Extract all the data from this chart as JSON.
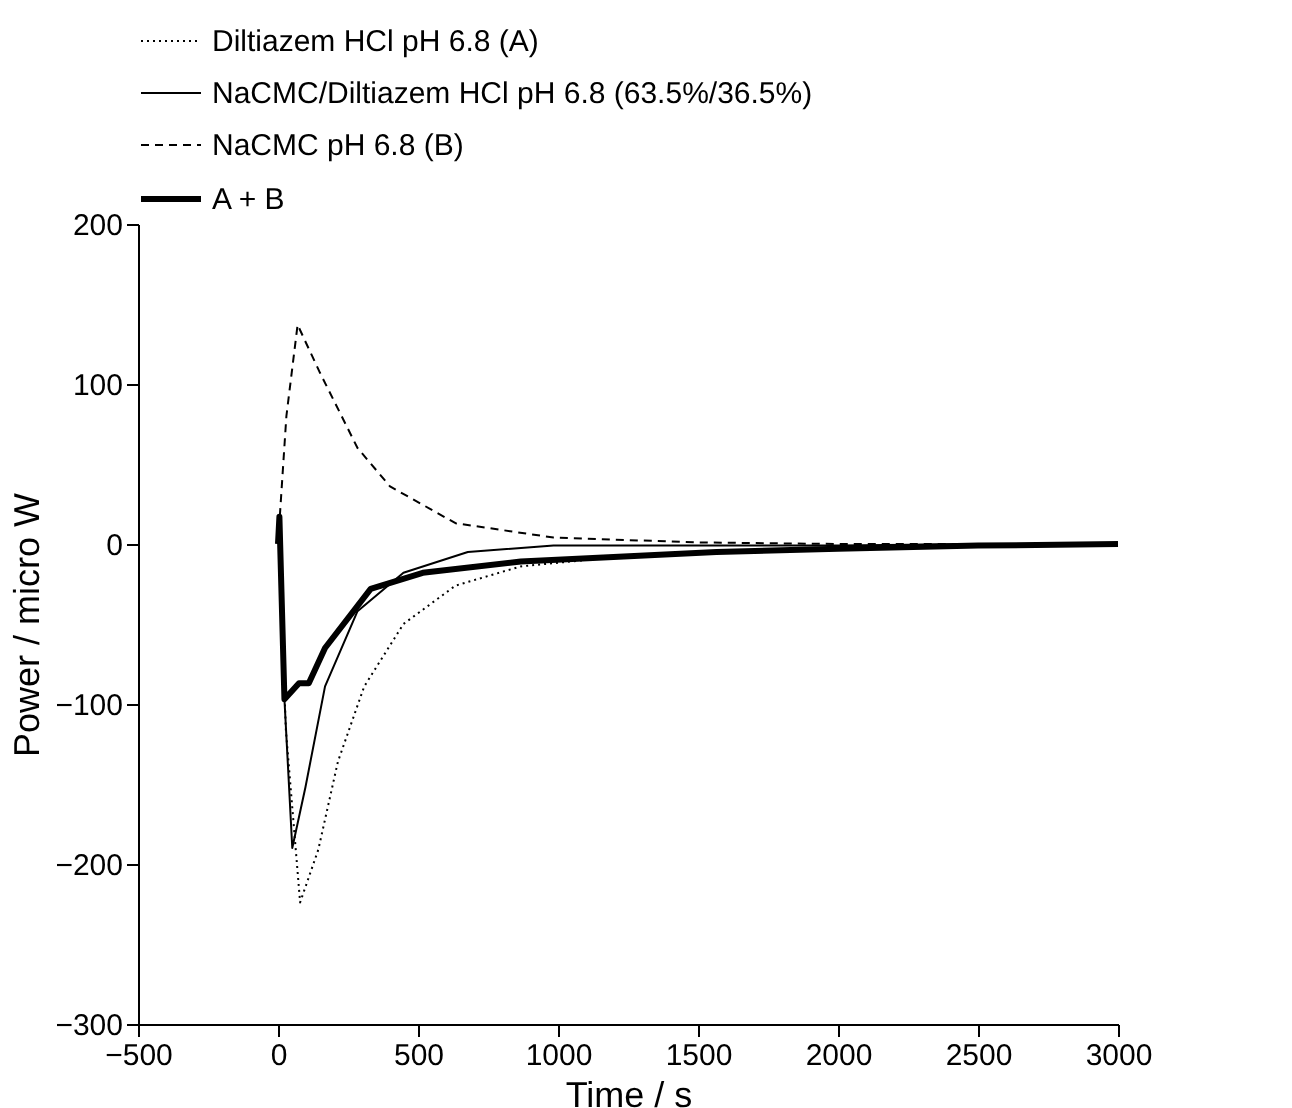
{
  "chart_data": {
    "type": "line",
    "xlabel": "Time / s",
    "ylabel": "Power / micro W",
    "xlim": [
      -500,
      3000
    ],
    "xticks": [
      -500,
      0,
      500,
      1000,
      1500,
      2000,
      2500,
      3000
    ],
    "ylim": [
      -300,
      200
    ],
    "yticks": [
      -300,
      -200,
      -100,
      0,
      100,
      200
    ],
    "grid": false,
    "legend": "top",
    "marker": "none",
    "series": [
      {
        "name": "Diltiazem HCl pH 6.8 (A)",
        "color": "#000000",
        "line_style": "dotted",
        "x": [
          0,
          5,
          28,
          79,
          144,
          214,
          308,
          448,
          634,
          867,
          1217,
          1566,
          2000,
          2500,
          3000
        ],
        "values": [
          0,
          0,
          -116,
          -224,
          -191,
          -136,
          -89,
          -50,
          -26,
          -14,
          -8,
          -5,
          -3,
          -1,
          0
        ]
      },
      {
        "name": "NaCMC/Diltiazem HCl pH 6.8 (63.5%/36.5%)",
        "color": "#000000",
        "line_style": "solid",
        "x": [
          0,
          5,
          23,
          51,
          98,
          168,
          284,
          448,
          678,
          984,
          1500,
          2000,
          2500,
          3000
        ],
        "values": [
          0,
          0,
          -97,
          -190,
          -152,
          -89,
          -42,
          -18,
          -5,
          -1,
          -1,
          -1,
          0,
          0
        ]
      },
      {
        "name": "NaCMC pH 6.8 (B)",
        "color": "#000000",
        "line_style": "dashed",
        "x": [
          0,
          30,
          70,
          150,
          284,
          400,
          634,
          984,
          1500,
          2000,
          2500,
          3000
        ],
        "values": [
          0,
          80,
          137,
          107,
          60,
          36,
          13,
          4,
          1,
          0,
          0,
          0
        ]
      },
      {
        "name": "A + B",
        "color": "#000000",
        "line_style": "solid",
        "x": [
          0,
          5,
          23,
          75,
          110,
          168,
          331,
          517,
          867,
          1566,
          2000,
          2500,
          3000
        ],
        "values": [
          0,
          17,
          -97,
          -87,
          -87,
          -65,
          -28,
          -18,
          -11,
          -5,
          -3,
          -1,
          0
        ]
      }
    ]
  }
}
